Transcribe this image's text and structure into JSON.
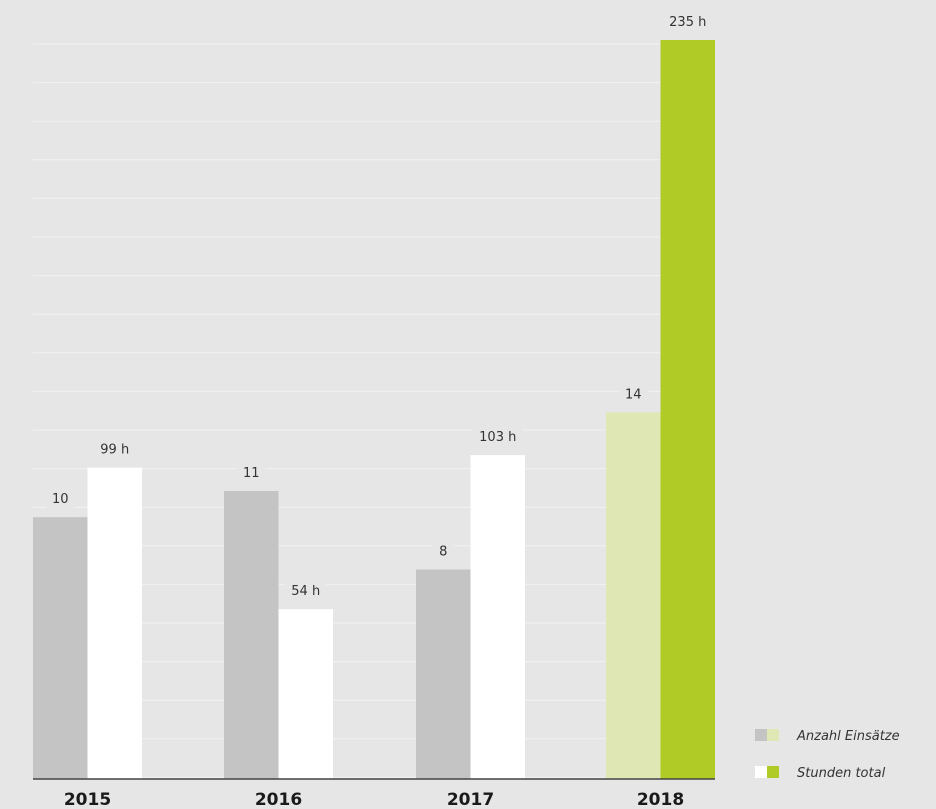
{
  "chart_data": {
    "type": "bar",
    "categories": [
      "2015",
      "2016",
      "2017",
      "2018"
    ],
    "series": [
      {
        "name": "Anzahl Einsätze",
        "values": [
          10,
          11,
          8,
          14
        ],
        "labels": [
          "10",
          "11",
          "8",
          "14"
        ],
        "color": "#c4c4c4",
        "highlight_color": "#dfe8b4"
      },
      {
        "name": "Stunden total",
        "values": [
          99,
          54,
          103,
          235
        ],
        "labels": [
          "99 h",
          "54 h",
          "103 h",
          "235 h"
        ],
        "color": "#ffffff",
        "highlight_color": "#b1cb26"
      }
    ],
    "highlighted_category": "2018",
    "grid": true,
    "legend_position": "bottom-right",
    "colors": {
      "background": "#e6e6e6",
      "gridline": "#f2f2f2",
      "axis": "#444444"
    }
  }
}
